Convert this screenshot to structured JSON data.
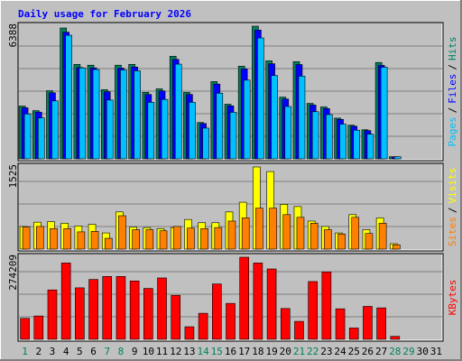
{
  "title": "Daily usage for February 2026",
  "title_color": "#0000ff",
  "legend_separator": "/",
  "weekend_color": "#008060",
  "weekend_indices": [
    0,
    6,
    7,
    13,
    14,
    20,
    21,
    27,
    28
  ],
  "chart_data": [
    {
      "type": "bar",
      "ylim": [
        0,
        6388
      ],
      "yticks": [
        6388
      ],
      "series": [
        {
          "name": "Hits",
          "color": "#008060",
          "values": [
            2540,
            2320,
            3280,
            6300,
            4550,
            4510,
            3330,
            4510,
            4550,
            3200,
            3370,
            4940,
            3200,
            1750,
            3720,
            2630,
            4460,
            6388,
            4720,
            2970,
            4680,
            2670,
            2500,
            1960,
            1620,
            1400,
            4640,
            100,
            null,
            null,
            null
          ]
        },
        {
          "name": "Files",
          "color": "#0000ff",
          "values": [
            2460,
            2250,
            3180,
            6100,
            4400,
            4380,
            3230,
            4370,
            4420,
            3100,
            3270,
            4790,
            3100,
            1700,
            3600,
            2550,
            4330,
            6200,
            4580,
            2880,
            4540,
            2590,
            2420,
            1900,
            1570,
            1360,
            4500,
            100,
            null,
            null,
            null
          ]
        },
        {
          "name": "Pages",
          "color": "#00c0ff",
          "values": [
            2160,
            1970,
            2790,
            5950,
            4380,
            4300,
            2830,
            4280,
            4240,
            2720,
            2860,
            4560,
            2720,
            1480,
            3160,
            2240,
            3790,
            5820,
            4010,
            2520,
            3980,
            2270,
            2130,
            1670,
            1380,
            1190,
            4410,
            100,
            null,
            null,
            null
          ]
        }
      ]
    },
    {
      "type": "bar",
      "ylim": [
        0,
        1525
      ],
      "yticks": [
        1525
      ],
      "series": [
        {
          "name": "Visits",
          "color": "#ffff00",
          "values": [
            420,
            500,
            510,
            480,
            430,
            460,
            300,
            690,
            410,
            400,
            380,
            400,
            550,
            490,
            490,
            690,
            870,
            1525,
            1440,
            830,
            790,
            520,
            420,
            300,
            640,
            360,
            580,
            100,
            null,
            null,
            null
          ]
        },
        {
          "name": "Sites",
          "color": "#ff8000",
          "values": [
            410,
            420,
            380,
            380,
            320,
            330,
            200,
            620,
            360,
            360,
            340,
            420,
            390,
            380,
            400,
            520,
            580,
            760,
            760,
            640,
            590,
            480,
            360,
            280,
            590,
            290,
            480,
            80,
            null,
            null,
            null
          ]
        }
      ]
    },
    {
      "type": "bar",
      "ylim": [
        0,
        274209
      ],
      "yticks": [
        274209
      ],
      "categories": [
        "1",
        "2",
        "3",
        "4",
        "5",
        "6",
        "7",
        "8",
        "9",
        "10",
        "11",
        "12",
        "13",
        "14",
        "15",
        "16",
        "17",
        "18",
        "19",
        "20",
        "21",
        "22",
        "23",
        "24",
        "25",
        "26",
        "27",
        "28",
        "29",
        "30",
        "31"
      ],
      "series": [
        {
          "name": "KBytes",
          "color": "#ff0000",
          "values": [
            70000,
            78000,
            165000,
            255000,
            172000,
            200000,
            210000,
            210000,
            195000,
            170000,
            205000,
            147000,
            42000,
            87000,
            185000,
            120000,
            274209,
            255000,
            235000,
            103000,
            60000,
            193000,
            225000,
            102000,
            38000,
            110000,
            105000,
            10000,
            null,
            null,
            null
          ]
        }
      ]
    }
  ]
}
